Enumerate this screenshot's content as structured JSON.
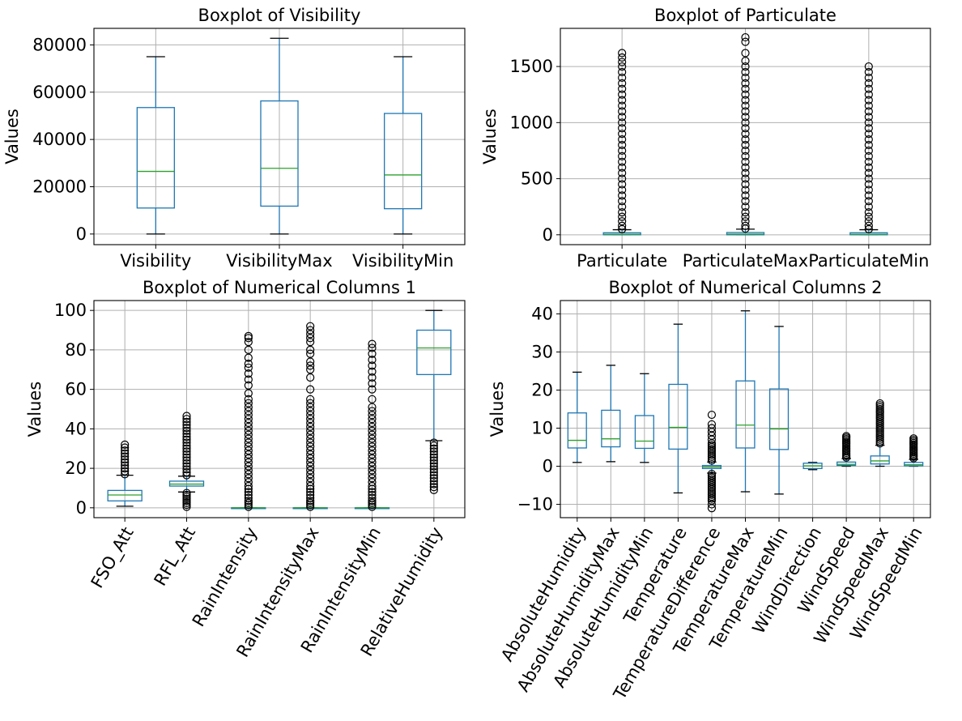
{
  "chart_data": [
    {
      "type": "boxplot",
      "title": "Boxplot of Visibility",
      "ylabel": "Values",
      "xlabel": "",
      "ylim": [
        -4500,
        87000
      ],
      "yticks": [
        0,
        20000,
        40000,
        60000,
        80000
      ],
      "ytick_labels": [
        "0",
        "20000",
        "40000",
        "60000",
        "80000"
      ],
      "grid": true,
      "xtick_rotation": 0,
      "categories": [
        "Visibility",
        "VisibilityMax",
        "VisibilityMin"
      ],
      "boxes": [
        {
          "whislo": 0,
          "q1": 11000,
          "med": 26500,
          "q3": 53500,
          "whishi": 75000,
          "fliers": []
        },
        {
          "whislo": 0,
          "q1": 11800,
          "med": 27800,
          "q3": 56300,
          "whishi": 82800,
          "fliers": []
        },
        {
          "whislo": 0,
          "q1": 10700,
          "med": 25000,
          "q3": 51000,
          "whishi": 75000,
          "fliers": []
        }
      ]
    },
    {
      "type": "boxplot",
      "title": "Boxplot of Particulate",
      "ylabel": "Values",
      "xlabel": "",
      "ylim": [
        -88,
        1840
      ],
      "yticks": [
        0,
        500,
        1000,
        1500
      ],
      "ytick_labels": [
        "0",
        "500",
        "1000",
        "1500"
      ],
      "grid": true,
      "xtick_rotation": 0,
      "categories": [
        "Particulate",
        "ParticulateMax",
        "ParticulateMin"
      ],
      "boxes": [
        {
          "whislo": 0,
          "q1": 0,
          "med": 5,
          "q3": 18,
          "whishi": 45,
          "fliers": [
            50,
            80,
            120,
            160,
            200,
            250,
            300,
            350,
            400,
            450,
            500,
            550,
            600,
            650,
            700,
            750,
            800,
            850,
            900,
            950,
            1000,
            1050,
            1100,
            1150,
            1200,
            1250,
            1300,
            1350,
            1400,
            1450,
            1500,
            1540,
            1580,
            1620
          ]
        },
        {
          "whislo": 0,
          "q1": 0,
          "med": 6,
          "q3": 20,
          "whishi": 50,
          "fliers": [
            55,
            80,
            120,
            160,
            200,
            250,
            300,
            350,
            400,
            450,
            500,
            550,
            600,
            650,
            700,
            750,
            800,
            850,
            900,
            950,
            1000,
            1050,
            1100,
            1150,
            1200,
            1250,
            1300,
            1350,
            1400,
            1450,
            1500,
            1550,
            1620,
            1720,
            1760
          ]
        },
        {
          "whislo": 0,
          "q1": 0,
          "med": 5,
          "q3": 18,
          "whishi": 45,
          "fliers": [
            50,
            80,
            120,
            160,
            200,
            250,
            300,
            350,
            400,
            450,
            500,
            550,
            600,
            650,
            700,
            750,
            800,
            850,
            900,
            950,
            1000,
            1050,
            1100,
            1150,
            1200,
            1250,
            1300,
            1350,
            1400,
            1450,
            1500
          ]
        }
      ]
    },
    {
      "type": "boxplot",
      "title": "Boxplot of Numerical Columns 1",
      "ylabel": "Values",
      "xlabel": "",
      "ylim": [
        -5,
        105
      ],
      "yticks": [
        0,
        20,
        40,
        60,
        80,
        100
      ],
      "ytick_labels": [
        "0",
        "20",
        "40",
        "60",
        "80",
        "100"
      ],
      "grid": true,
      "xtick_rotation": -60,
      "categories": [
        "FSO_Att",
        "RFL_Att",
        "RainIntensity",
        "RainIntensityMax",
        "RainIntensityMin",
        "RelativeHumidity"
      ],
      "boxes": [
        {
          "whislo": 0.8,
          "q1": 3.5,
          "med": 6.5,
          "q3": 8.8,
          "whishi": 16.5,
          "fliers": [
            17,
            18.5,
            20,
            21.5,
            23,
            24.5,
            26,
            27.5,
            29,
            30.5,
            32
          ]
        },
        {
          "whislo": 8,
          "q1": 11,
          "med": 12,
          "q3": 13.5,
          "whishi": 16,
          "fliers": [
            0.5,
            1.5,
            2.5,
            3.5,
            4.5,
            5.5,
            6.5,
            7.5,
            16.5,
            18,
            19.5,
            21,
            22.5,
            24,
            25.5,
            27,
            28.5,
            30,
            31.5,
            33,
            34.5,
            36,
            37.5,
            39,
            40.5,
            42,
            43.5,
            45,
            46.5
          ]
        },
        {
          "whislo": 0,
          "q1": 0,
          "med": 0,
          "q3": 0,
          "whishi": 0,
          "fliers": [
            0.5,
            1.5,
            2.5,
            3.5,
            5,
            6.5,
            8,
            9.5,
            11,
            13,
            15,
            17,
            19,
            21,
            23,
            25,
            27,
            29,
            31,
            33,
            35,
            37,
            39,
            41,
            43,
            45,
            47,
            49,
            51,
            53,
            55,
            58,
            62,
            65,
            68,
            71,
            73,
            76,
            80,
            84,
            86,
            87
          ]
        },
        {
          "whislo": 0,
          "q1": 0,
          "med": 0,
          "q3": 0,
          "whishi": 0,
          "fliers": [
            0.5,
            1.5,
            2.5,
            3.5,
            5,
            6.5,
            8,
            9.5,
            11,
            13,
            15,
            17,
            19,
            21,
            23,
            25,
            27,
            29,
            31,
            33,
            35,
            37,
            39,
            41,
            43,
            45,
            47,
            49,
            51,
            53,
            55,
            60,
            66,
            70,
            72,
            74,
            78,
            80,
            84,
            86,
            88,
            90,
            92
          ]
        },
        {
          "whislo": 0,
          "q1": 0,
          "med": 0,
          "q3": 0,
          "whishi": 0,
          "fliers": [
            0.5,
            1.5,
            2.5,
            3.5,
            5,
            6.5,
            8,
            9.5,
            11,
            13,
            15,
            17,
            19,
            21,
            23,
            25,
            27,
            29,
            31,
            33,
            35,
            37,
            39,
            41,
            43,
            45,
            47,
            49,
            51,
            55,
            60,
            63,
            66,
            69,
            72,
            75,
            78,
            81,
            83
          ]
        },
        {
          "whislo": 34,
          "q1": 67.5,
          "med": 81,
          "q3": 90,
          "whishi": 100,
          "fliers": [
            9,
            10.5,
            12,
            13.5,
            15,
            16.5,
            18,
            19.5,
            21,
            22.5,
            24,
            25.5,
            27,
            28.5,
            30,
            31.5,
            33
          ]
        }
      ]
    },
    {
      "type": "boxplot",
      "title": "Boxplot of Numerical Columns 2",
      "ylabel": "Values",
      "xlabel": "",
      "ylim": [
        -13.5,
        43.5
      ],
      "yticks": [
        -10,
        0,
        10,
        20,
        30,
        40
      ],
      "ytick_labels": [
        "−10",
        "0",
        "10",
        "20",
        "30",
        "40"
      ],
      "grid": true,
      "xtick_rotation": -60,
      "categories": [
        "AbsoluteHumidity",
        "AbsoluteHumidityMax",
        "AbsoluteHumidityMin",
        "Temperature",
        "TemperatureDifference",
        "TemperatureMax",
        "TemperatureMin",
        "WindDirection",
        "WindSpeed",
        "WindSpeedMax",
        "WindSpeedMin"
      ],
      "boxes": [
        {
          "whislo": 1,
          "q1": 4.8,
          "med": 6.8,
          "q3": 14,
          "whishi": 24.7,
          "fliers": []
        },
        {
          "whislo": 1.2,
          "q1": 5.1,
          "med": 7.2,
          "q3": 14.7,
          "whishi": 26.5,
          "fliers": []
        },
        {
          "whislo": 1,
          "q1": 4.7,
          "med": 6.6,
          "q3": 13.3,
          "whishi": 24.3,
          "fliers": []
        },
        {
          "whislo": -7,
          "q1": 4.5,
          "med": 10.2,
          "q3": 21.5,
          "whishi": 37.3,
          "fliers": []
        },
        {
          "whislo": -1.8,
          "q1": -0.6,
          "med": -0.2,
          "q3": 0.2,
          "whishi": 1.1,
          "fliers": [
            -11,
            -10,
            -9,
            -8.5,
            -8,
            -7.5,
            -7,
            -6.5,
            -6,
            -5.5,
            -5,
            -4.5,
            -4,
            -3.5,
            -3,
            -2.5,
            -2,
            1.5,
            2,
            2.5,
            3,
            3.5,
            4,
            4.5,
            5,
            5.5,
            6,
            7,
            8,
            9,
            10,
            11,
            13.5
          ]
        },
        {
          "whislo": -6.7,
          "q1": 4.8,
          "med": 10.8,
          "q3": 22.4,
          "whishi": 40.8,
          "fliers": []
        },
        {
          "whislo": -7.3,
          "q1": 4.4,
          "med": 9.8,
          "q3": 20.3,
          "whishi": 36.7,
          "fliers": []
        },
        {
          "whislo": -0.9,
          "q1": -0.6,
          "med": 0.1,
          "q3": 0.8,
          "whishi": 1,
          "fliers": []
        },
        {
          "whislo": 0,
          "q1": 0.2,
          "med": 0.5,
          "q3": 1.1,
          "whishi": 2,
          "fliers": [
            2.3,
            2.7,
            3.1,
            3.5,
            3.9,
            4.3,
            4.7,
            5.1,
            5.5,
            5.9,
            6.3,
            6.7,
            7.1,
            7.5,
            7.9
          ]
        },
        {
          "whislo": 0,
          "q1": 0.6,
          "med": 1.4,
          "q3": 2.7,
          "whishi": 5.5,
          "fliers": [
            6,
            6.5,
            7,
            7.5,
            8,
            8.5,
            9,
            9.5,
            10,
            10.5,
            11,
            11.5,
            12,
            12.5,
            13,
            13.5,
            14,
            14.5,
            15,
            15.5,
            16,
            16.5
          ]
        },
        {
          "whislo": 0,
          "q1": 0.1,
          "med": 0.4,
          "q3": 1,
          "whishi": 1.8,
          "fliers": [
            2.1,
            2.5,
            2.9,
            3.3,
            3.7,
            4.1,
            4.5,
            4.9,
            5.3,
            5.7,
            6.1,
            6.5,
            6.9,
            7.3
          ]
        }
      ]
    }
  ]
}
